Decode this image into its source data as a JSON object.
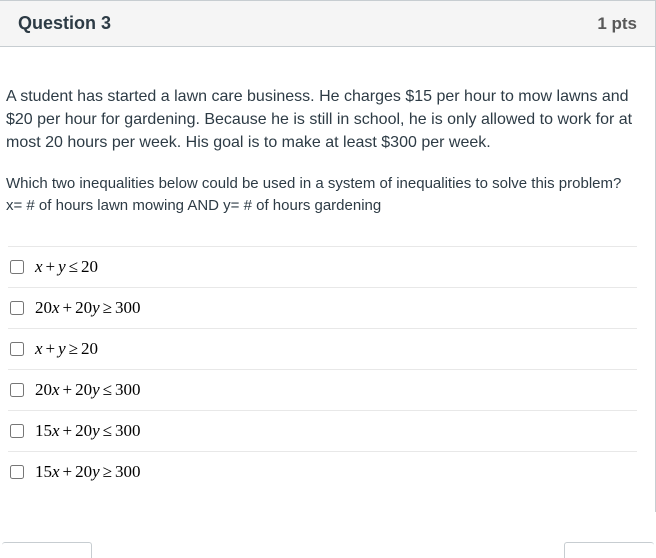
{
  "header": {
    "title": "Question 3",
    "points": "1 pts"
  },
  "body": {
    "paragraph1": "A student has started a lawn care business. He charges $15 per hour to mow lawns and $20 per hour for gardening. Because he is still in school, he is only allowed to work for at most 20 hours per week. His goal is to make at least $300 per week.",
    "paragraph2": "Which two inequalities below could be used in a system of inequalities to solve this problem? x= # of hours lawn mowing AND y= # of hours gardening"
  },
  "answers": [
    {
      "html": "<span class='it'>x</span><span class='op'>+</span><span class='it'>y</span><span class='op'>≤</span><span class='num'>20</span>"
    },
    {
      "html": "<span class='num'>20</span><span class='it'>x</span><span class='op'>+</span><span class='num'>20</span><span class='it'>y</span><span class='op'>≥</span><span class='num'>300</span>"
    },
    {
      "html": "<span class='it'>x</span><span class='op'>+</span><span class='it'>y</span><span class='op'>≥</span><span class='num'>20</span>"
    },
    {
      "html": "<span class='num'>20</span><span class='it'>x</span><span class='op'>+</span><span class='num'>20</span><span class='it'>y</span><span class='op'>≤</span><span class='num'>300</span>"
    },
    {
      "html": "<span class='num'>15</span><span class='it'>x</span><span class='op'>+</span><span class='num'>20</span><span class='it'>y</span><span class='op'>≤</span><span class='num'>300</span>"
    },
    {
      "html": "<span class='num'>15</span><span class='it'>x</span><span class='op'>+</span><span class='num'>20</span><span class='it'>y</span><span class='op'>≥</span><span class='num'>300</span>"
    }
  ],
  "colors": {
    "border": "#c7cdd1",
    "text": "#2d3b45",
    "header_bg": "#f5f5f5",
    "answer_border": "#e8e8e8"
  }
}
